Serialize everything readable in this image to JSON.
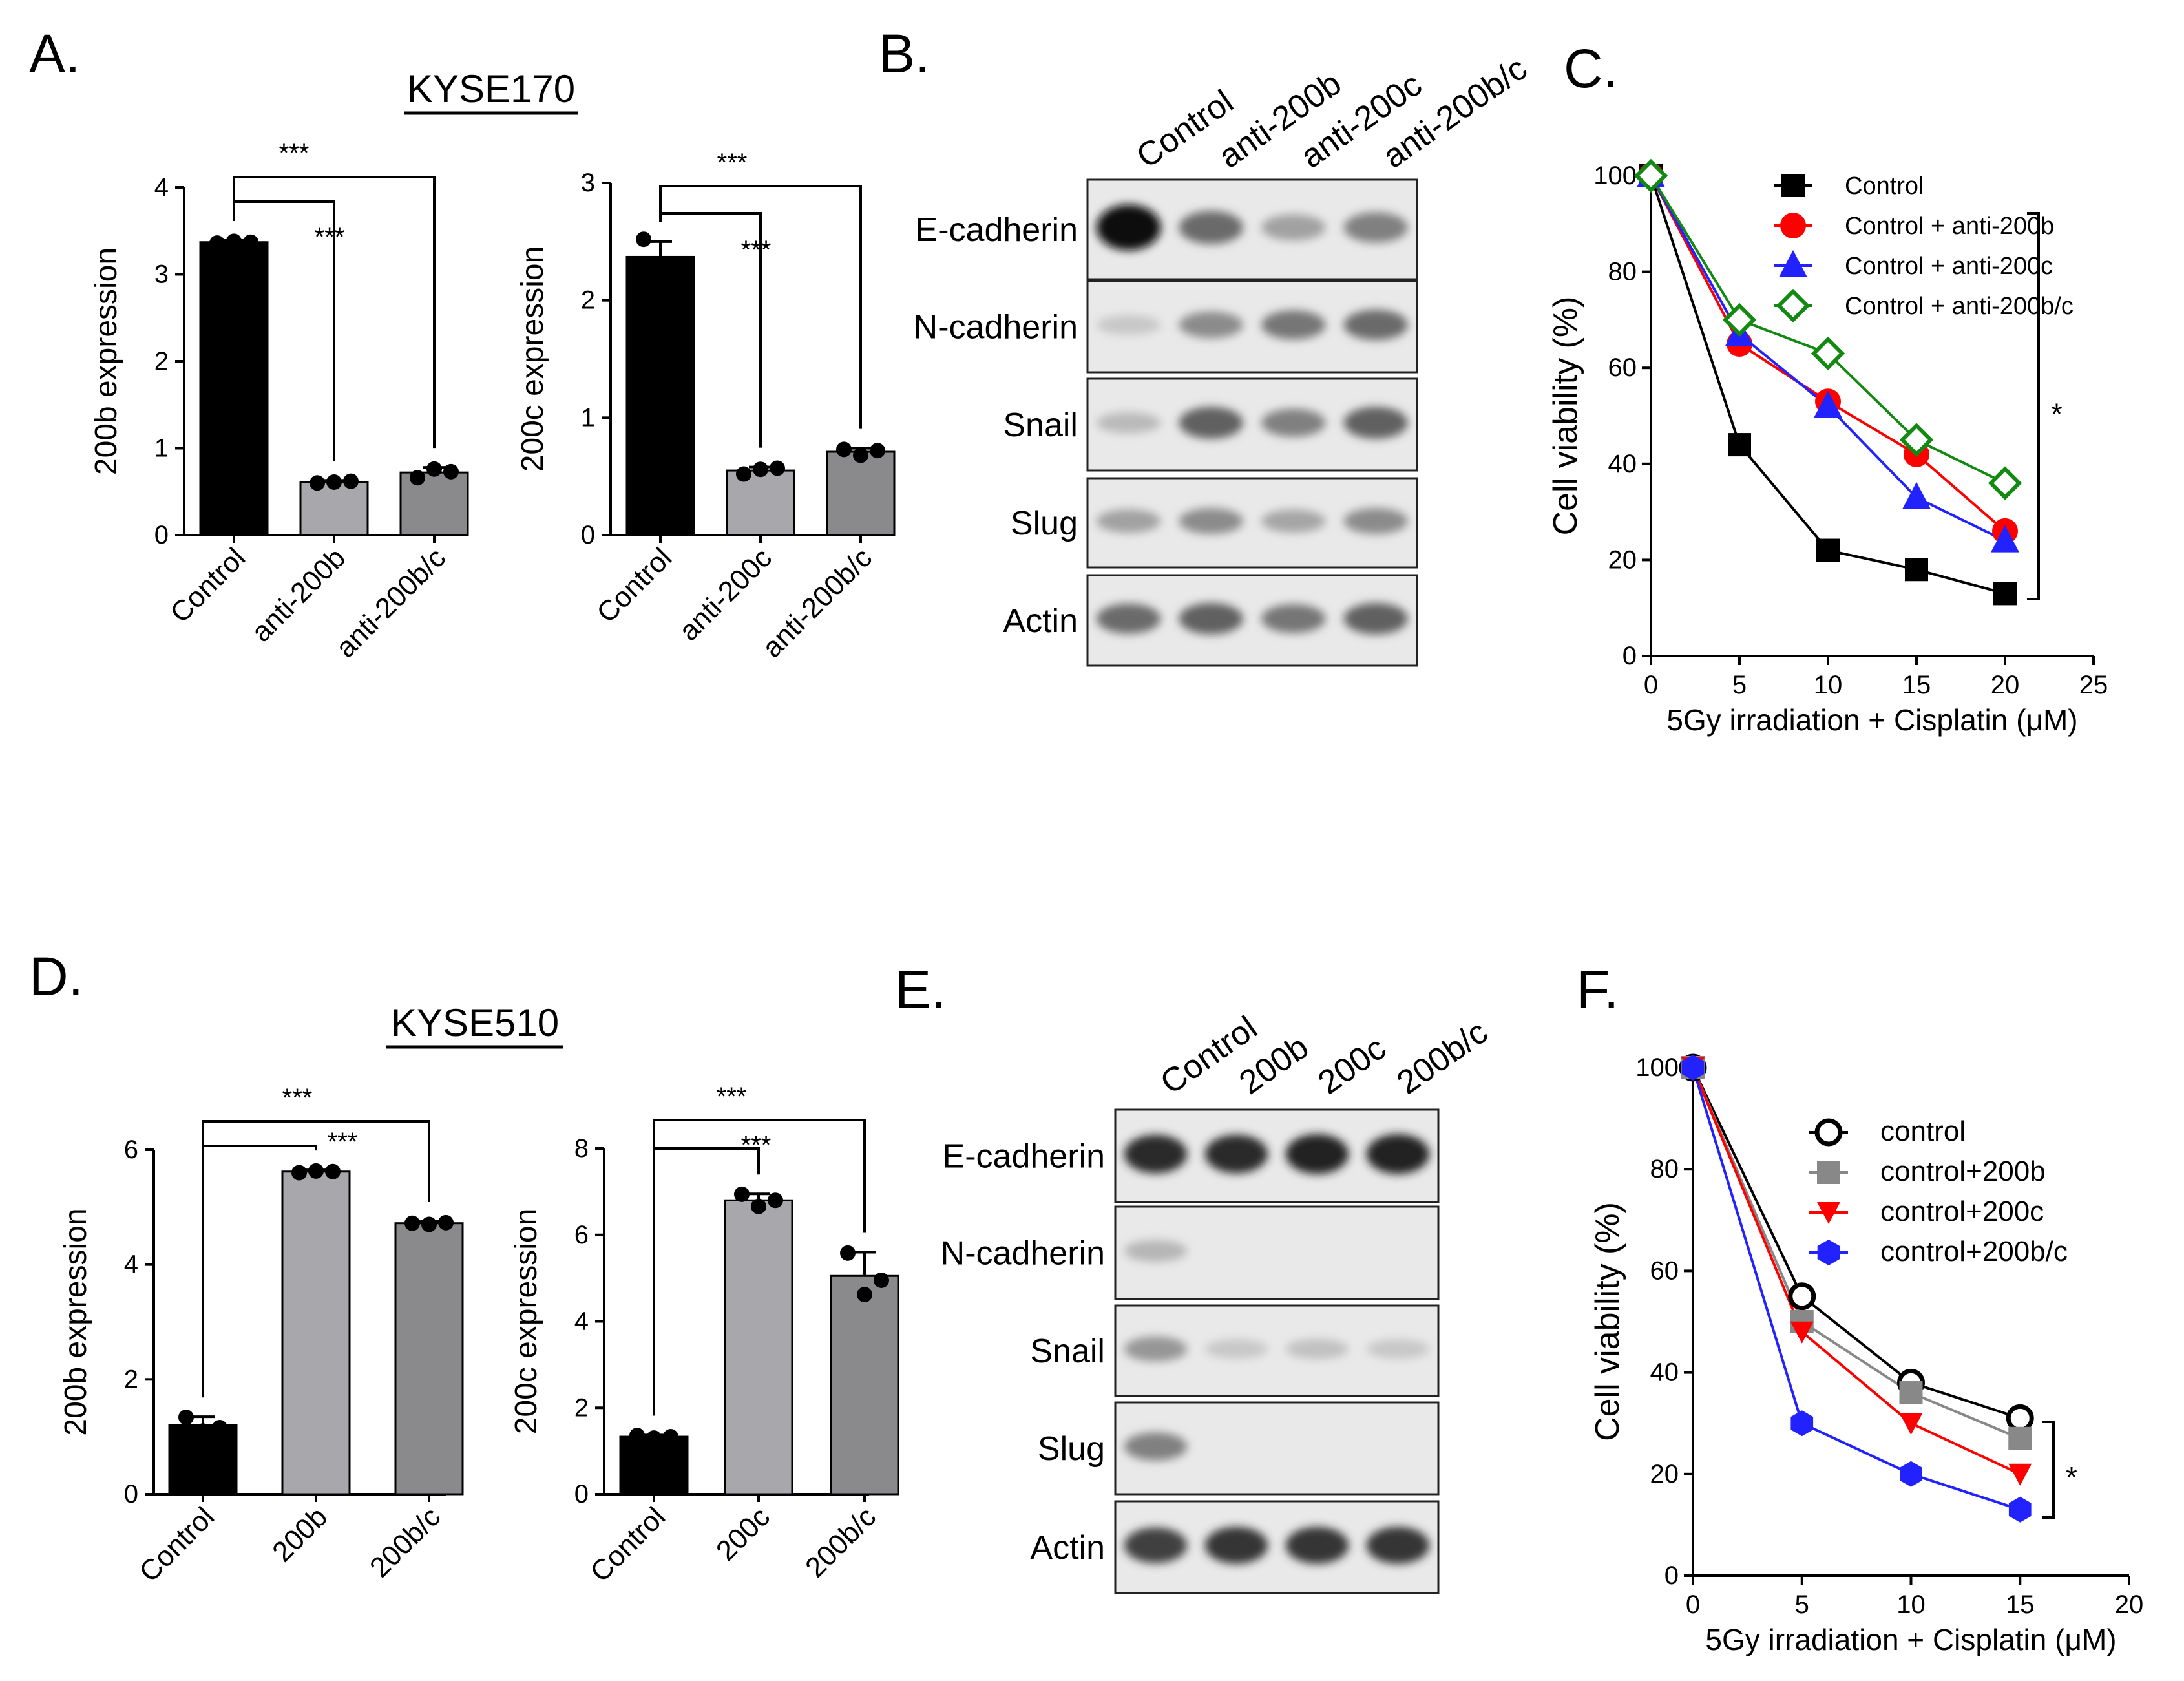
{
  "colors": {
    "black": "#000000",
    "light_gray": "#a8a8ac",
    "mid_gray": "#8a8a8c",
    "red": "#ff0000",
    "blue": "#2222ff",
    "green": "#128a12",
    "gray": "#888888"
  },
  "panels": {
    "A": {
      "letter": "A.",
      "cell_line": "KYSE170"
    },
    "B": {
      "letter": "B."
    },
    "C": {
      "letter": "C."
    },
    "D": {
      "letter": "D.",
      "cell_line": "KYSE510"
    },
    "E": {
      "letter": "E."
    },
    "F": {
      "letter": "F."
    }
  },
  "blots": {
    "B": {
      "lanes": [
        "Control",
        "anti-200b",
        "anti-200c",
        "anti-200b/c"
      ],
      "proteins": [
        "E-cadherin",
        "N-cadherin",
        "Snail",
        "Slug",
        "Actin"
      ],
      "intensity": [
        [
          1.0,
          0.55,
          0.3,
          0.45
        ],
        [
          0.12,
          0.4,
          0.5,
          0.55
        ],
        [
          0.18,
          0.6,
          0.45,
          0.6
        ],
        [
          0.3,
          0.4,
          0.28,
          0.4
        ],
        [
          0.55,
          0.6,
          0.5,
          0.6
        ]
      ]
    },
    "E": {
      "lanes": [
        "Control",
        "200b",
        "200c",
        "200b/c"
      ],
      "proteins": [
        "E-cadherin",
        "N-cadherin",
        "Snail",
        "Slug",
        "Actin"
      ],
      "intensity": [
        [
          0.85,
          0.85,
          0.9,
          0.9
        ],
        [
          0.2,
          0.0,
          0.0,
          0.0
        ],
        [
          0.35,
          0.12,
          0.15,
          0.12
        ],
        [
          0.45,
          0.0,
          0.0,
          0.0
        ],
        [
          0.75,
          0.8,
          0.8,
          0.8
        ]
      ]
    }
  },
  "chart_data": [
    {
      "id": "A1",
      "type": "bar",
      "title": "KYSE170",
      "categories": [
        "Control",
        "anti-200b",
        "anti-200b/c"
      ],
      "values": [
        3.37,
        0.61,
        0.72
      ],
      "points": [
        [
          3.36,
          3.38,
          3.37
        ],
        [
          0.6,
          0.61,
          0.62
        ],
        [
          0.66,
          0.76,
          0.73
        ]
      ],
      "errors": [
        0.02,
        0.02,
        0.06
      ],
      "bar_colors": [
        "#000000",
        "#a8a8ac",
        "#8a8a8c"
      ],
      "ylabel": "200b expression",
      "ylim": [
        0,
        4
      ],
      "yticks": [
        "0",
        "1",
        "2",
        "3",
        "4"
      ],
      "sig": [
        "***",
        "***"
      ]
    },
    {
      "id": "A2",
      "type": "bar",
      "categories": [
        "Control",
        "anti-200c",
        "anti-200b/c"
      ],
      "values": [
        2.37,
        0.55,
        0.71
      ],
      "points": [
        [
          2.52,
          2.3,
          2.3
        ],
        [
          0.52,
          0.56,
          0.57
        ],
        [
          0.73,
          0.68,
          0.72
        ]
      ],
      "errors": [
        0.13,
        0.03,
        0.03
      ],
      "bar_colors": [
        "#000000",
        "#a8a8ac",
        "#8a8a8c"
      ],
      "ylabel": "200c expression",
      "ylim": [
        0,
        3
      ],
      "yticks": [
        "0",
        "1",
        "2",
        "3"
      ],
      "sig": [
        "***",
        "***"
      ]
    },
    {
      "id": "C",
      "type": "line",
      "x": [
        0,
        5,
        10,
        15,
        20
      ],
      "series": [
        {
          "name": "Control",
          "values": [
            100,
            44,
            22,
            18,
            13
          ],
          "color": "#000000",
          "marker": "square"
        },
        {
          "name": "Control + anti-200b",
          "values": [
            100,
            65,
            53,
            42,
            26
          ],
          "color": "#ff0000",
          "marker": "circle"
        },
        {
          "name": "Control + anti-200c",
          "values": [
            100,
            67,
            52,
            33,
            24
          ],
          "color": "#2222ff",
          "marker": "triangle"
        },
        {
          "name": "Control + anti-200b/c",
          "values": [
            100,
            70,
            63,
            45,
            36
          ],
          "color": "#128a12",
          "marker": "diamond-open"
        }
      ],
      "xlabel": "5Gy irradiation + Cisplatin (μM)",
      "ylabel": "Cell viability (%)",
      "xlim": [
        0,
        25
      ],
      "ylim": [
        0,
        100
      ],
      "xticks": [
        "0",
        "5",
        "10",
        "15",
        "20",
        "25"
      ],
      "yticks": [
        "0",
        "20",
        "40",
        "60",
        "80",
        "100"
      ],
      "sig": "*"
    },
    {
      "id": "D1",
      "type": "bar",
      "title": "KYSE510",
      "categories": [
        "Control",
        "200b",
        "200b/c"
      ],
      "values": [
        1.2,
        5.62,
        4.72
      ],
      "points": [
        [
          1.34,
          1.1,
          1.16
        ],
        [
          5.6,
          5.63,
          5.62
        ],
        [
          4.72,
          4.7,
          4.73
        ]
      ],
      "errors": [
        0.15,
        0.03,
        0.03
      ],
      "bar_colors": [
        "#000000",
        "#a8a8ac",
        "#8a8a8c"
      ],
      "ylabel": "200b expression",
      "ylim": [
        0,
        6
      ],
      "yticks": [
        "0",
        "2",
        "4",
        "6"
      ],
      "sig": [
        "***",
        "***"
      ]
    },
    {
      "id": "D2",
      "type": "bar",
      "categories": [
        "Control",
        "200c",
        "200b/c"
      ],
      "values": [
        1.33,
        6.8,
        5.05
      ],
      "points": [
        [
          1.36,
          1.3,
          1.33
        ],
        [
          6.94,
          6.66,
          6.8
        ],
        [
          5.58,
          4.62,
          4.95
        ]
      ],
      "errors": [
        0.04,
        0.15,
        0.55
      ],
      "bar_colors": [
        "#000000",
        "#a8a8ac",
        "#8a8a8c"
      ],
      "ylabel": "200c expression",
      "ylim": [
        0,
        8
      ],
      "yticks": [
        "0",
        "2",
        "4",
        "6",
        "8"
      ],
      "sig": [
        "***",
        "***"
      ]
    },
    {
      "id": "F",
      "type": "line",
      "x": [
        0,
        5,
        10,
        15
      ],
      "series": [
        {
          "name": "control",
          "values": [
            100,
            55,
            38,
            31
          ],
          "color": "#000000",
          "marker": "circle-open"
        },
        {
          "name": "control+200b",
          "values": [
            100,
            50,
            36,
            27
          ],
          "color": "#888888",
          "marker": "square"
        },
        {
          "name": "control+200c",
          "values": [
            100,
            48,
            30,
            20
          ],
          "color": "#ff0000",
          "marker": "triangle-down"
        },
        {
          "name": "control+200b/c",
          "values": [
            100,
            30,
            20,
            13
          ],
          "color": "#2222ff",
          "marker": "hexagon"
        }
      ],
      "xlabel": "5Gy irradiation + Cisplatin (μM)",
      "ylabel": "Cell viability (%)",
      "xlim": [
        0,
        20
      ],
      "ylim": [
        0,
        100
      ],
      "xticks": [
        "0",
        "5",
        "10",
        "15",
        "20"
      ],
      "yticks": [
        "0",
        "20",
        "40",
        "60",
        "80",
        "100"
      ],
      "sig": "*"
    }
  ]
}
